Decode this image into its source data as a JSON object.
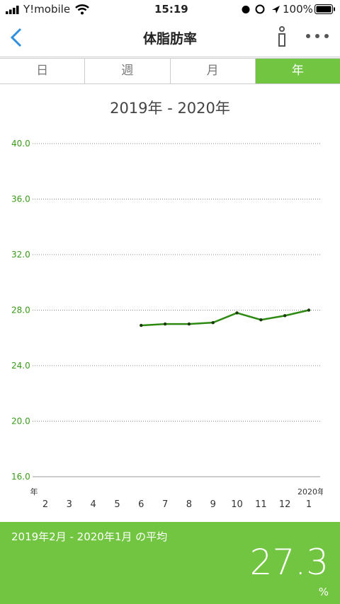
{
  "status_bar": {
    "carrier": "Y!mobile",
    "time": "15:19",
    "battery": "100%"
  },
  "nav": {
    "title": "体脂肪率"
  },
  "tabs": [
    "日",
    "週",
    "月",
    "年"
  ],
  "chart_data": {
    "type": "line",
    "title": "2019年 - 2020年",
    "categories": [
      "2",
      "3",
      "4",
      "5",
      "6",
      "7",
      "8",
      "9",
      "10",
      "11",
      "12",
      "1"
    ],
    "year_labels": [
      "年",
      "2020年"
    ],
    "series": [
      {
        "name": "体脂肪率",
        "color": "#2c8a10",
        "values": [
          null,
          null,
          null,
          null,
          26.9,
          27.0,
          27.0,
          27.1,
          27.8,
          27.3,
          27.6,
          28.0
        ]
      }
    ],
    "ylim": [
      16,
      40
    ],
    "yticks": [
      {
        "value": 16,
        "label": "16.0"
      },
      {
        "value": 20,
        "label": "20.0"
      },
      {
        "value": 24,
        "label": "24.0"
      },
      {
        "value": 28,
        "label": "28.0"
      },
      {
        "value": 32,
        "label": "32.0"
      },
      {
        "value": 36,
        "label": "36.0"
      },
      {
        "value": 40,
        "label": "40.0"
      }
    ],
    "grid": true
  },
  "summary": {
    "label": "2019年2月 - 2020年1月 の平均",
    "value": 27.3,
    "unit": "%"
  }
}
